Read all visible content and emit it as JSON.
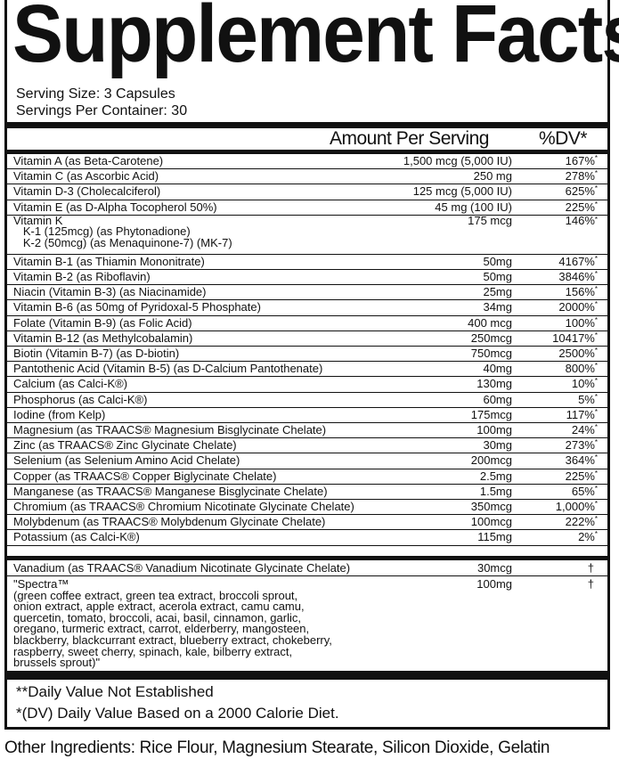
{
  "title": "Supplement Facts",
  "serving_size": "Serving Size: 3 Capsules",
  "servings_per_container": "Servings Per Container: 30",
  "header": {
    "amount": "Amount Per Serving",
    "dv": "%DV*"
  },
  "rows": [
    {
      "name": "Vitamin A (as Beta-Carotene)",
      "amount": "1,500 mcg (5,000 IU)",
      "dv": "167%"
    },
    {
      "name": "Vitamin C (as Ascorbic Acid)",
      "amount": "250 mg",
      "dv": "278%"
    },
    {
      "name": "Vitamin D-3 (Cholecalciferol)",
      "amount": "125 mcg (5,000 IU)",
      "dv": "625%"
    },
    {
      "name": "Vitamin E (as D-Alpha Tocopherol 50%)",
      "amount": "45 mg (100 IU)",
      "dv": "225%"
    },
    {
      "name": "Vitamin K\n   K-1 (125mcg) (as Phytonadione)\n   K-2 (50mcg) (as Menaquinone-7) (MK-7)",
      "amount": "175 mcg",
      "dv": "146%"
    },
    {
      "name": "Vitamin B-1 (as Thiamin Mononitrate)",
      "amount": "50mg",
      "dv": "4167%"
    },
    {
      "name": "Vitamin B-2 (as Riboflavin)",
      "amount": "50mg",
      "dv": "3846%"
    },
    {
      "name": "Niacin (Vitamin B-3) (as Niacinamide)",
      "amount": "25mg",
      "dv": "156%"
    },
    {
      "name": "Vitamin B-6 (as 50mg of Pyridoxal-5 Phosphate)",
      "amount": "34mg",
      "dv": "2000%"
    },
    {
      "name": "Folate (Vitamin B-9) (as Folic Acid)",
      "amount": "400 mcg",
      "dv": "100%"
    },
    {
      "name": "Vitamin B-12 (as Methylcobalamin)",
      "amount": "250mcg",
      "dv": "10417%"
    },
    {
      "name": "Biotin (Vitamin B-7) (as D-biotin)",
      "amount": "750mcg",
      "dv": "2500%"
    },
    {
      "name": "Pantothenic Acid (Vitamin B-5) (as D-Calcium Pantothenate)",
      "amount": "40mg",
      "dv": "800%"
    },
    {
      "name": "Calcium (as Calci-K®)",
      "amount": "130mg",
      "dv": "10%"
    },
    {
      "name": "Phosphorus (as Calci-K®)",
      "amount": "60mg",
      "dv": "5%"
    },
    {
      "name": "Iodine (from Kelp)",
      "amount": "175mcg",
      "dv": "117%"
    },
    {
      "name": "Magnesium (as TRAACS® Magnesium Bisglycinate Chelate)",
      "amount": "100mg",
      "dv": "24%"
    },
    {
      "name": "Zinc (as TRAACS® Zinc Glycinate Chelate)",
      "amount": "30mg",
      "dv": "273%"
    },
    {
      "name": "Selenium (as Selenium Amino Acid Chelate)",
      "amount": "200mcg",
      "dv": "364%"
    },
    {
      "name": "Copper (as TRAACS® Copper Biglycinate Chelate)",
      "amount": "2.5mg",
      "dv": "225%"
    },
    {
      "name": "Manganese (as TRAACS® Manganese Bisglycinate Chelate)",
      "amount": "1.5mg",
      "dv": "65%"
    },
    {
      "name": "Chromium (as TRAACS® Chromium Nicotinate Glycinate Chelate)",
      "amount": "350mcg",
      "dv": "1,000%"
    },
    {
      "name": "Molybdenum (as TRAACS® Molybdenum Glycinate Chelate)",
      "amount": "100mcg",
      "dv": "222%"
    },
    {
      "name": "Potassium (as Calci-K®)",
      "amount": "115mg",
      "dv": "2%"
    }
  ],
  "dv_mark": "*",
  "vanadium": {
    "name": "Vanadium (as TRAACS® Vanadium Nicotinate Glycinate Chelate)",
    "amount": "30mcg",
    "dv": "†"
  },
  "spectra": {
    "name": "\"Spectra™\n(green coffee extract, green tea extract, broccoli sprout,\nonion extract, apple extract, acerola extract, camu camu,\nquercetin, tomato, broccoli, acai, basil, cinnamon, garlic,\noregano, turmeric extract, carrot, elderberry, mangosteen,\nblackberry, blackcurrant extract, blueberry extract, chokeberry,\nraspberry, sweet cherry, spinach, kale, bilberry extract,\nbrussels sprout)\"",
    "amount": "100mg",
    "dv": "†"
  },
  "footnotes": [
    "**Daily Value Not Established",
    "*(DV) Daily Value Based on a 2000 Calorie Diet."
  ],
  "other_ingredients": "Other Ingredients: Rice Flour, Magnesium Stearate, Silicon Dioxide, Gelatin"
}
